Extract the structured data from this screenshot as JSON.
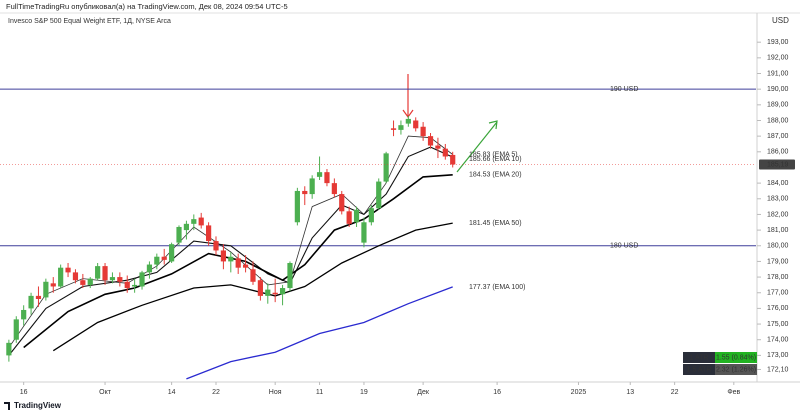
{
  "chart_data": {
    "type": "candlestick",
    "header": "FullTimeTradingRu опубликовал(а) на TradingView.com, Дек 08, 2024 09:54 UTC-5",
    "title": "Invesco S&P 500 Equal Weight ETF, 1Д, NYSE Arca",
    "currency": "USD",
    "footer": "TradingView",
    "up_color": "#4caf50",
    "down_color": "#e53935",
    "x": [
      0,
      1,
      2,
      3,
      4,
      5,
      6,
      7,
      8,
      9,
      10,
      11,
      12,
      13,
      14,
      15,
      16,
      17,
      18,
      19,
      20,
      21,
      22,
      23,
      24,
      25,
      26,
      27,
      28,
      29,
      30,
      31,
      32,
      33,
      34,
      35,
      36,
      37,
      38,
      39,
      40,
      41,
      42,
      43,
      44,
      45,
      46,
      47,
      48,
      49,
      50,
      51,
      52,
      53,
      54,
      55,
      56,
      57,
      58,
      59,
      60
    ],
    "open": [
      173.0,
      174.0,
      175.3,
      176.0,
      176.8,
      176.7,
      177.6,
      177.4,
      178.6,
      178.3,
      177.8,
      177.5,
      177.9,
      178.7,
      177.8,
      178.0,
      177.7,
      177.4,
      177.4,
      178.3,
      178.8,
      179.3,
      179.0,
      180.2,
      181.0,
      181.4,
      181.8,
      181.3,
      180.3,
      179.7,
      179.0,
      179.2,
      178.8,
      178.5,
      177.8,
      176.8,
      177.0,
      176.9,
      177.3,
      181.5,
      183.5,
      183.3,
      184.4,
      184.7,
      184.0,
      183.3,
      182.2,
      181.5,
      180.2,
      181.5,
      182.4,
      184.1,
      187.5,
      187.4,
      187.8,
      188.0,
      187.6,
      187.0,
      186.4,
      186.2,
      185.8
    ],
    "high": [
      174.0,
      175.5,
      176.2,
      177.0,
      177.4,
      177.9,
      178.0,
      178.8,
      178.9,
      178.5,
      178.2,
      178.0,
      178.9,
      178.9,
      178.3,
      178.3,
      178.1,
      177.9,
      178.4,
      179.0,
      179.5,
      179.8,
      180.2,
      181.3,
      181.6,
      182.0,
      182.1,
      181.5,
      180.6,
      180.1,
      179.6,
      179.5,
      179.4,
      179.0,
      178.0,
      177.6,
      177.9,
      177.5,
      179.0,
      183.7,
      183.8,
      184.5,
      185.7,
      184.9,
      184.3,
      183.5,
      182.5,
      182.5,
      181.8,
      182.6,
      184.3,
      186.0,
      188.0,
      188.0,
      188.3,
      188.2,
      187.9,
      187.2,
      186.9,
      186.5,
      186.0
    ],
    "low": [
      172.6,
      173.8,
      174.9,
      175.6,
      176.1,
      176.5,
      177.0,
      177.3,
      178.0,
      177.6,
      177.3,
      177.3,
      177.8,
      177.5,
      177.6,
      177.4,
      177.0,
      177.0,
      177.2,
      177.9,
      178.5,
      178.8,
      178.9,
      180.0,
      180.4,
      181.0,
      181.1,
      180.0,
      179.4,
      178.5,
      178.3,
      178.2,
      178.3,
      177.5,
      176.5,
      176.3,
      176.4,
      176.2,
      177.1,
      181.3,
      182.6,
      183.0,
      184.2,
      183.8,
      183.1,
      182.0,
      181.2,
      181.2,
      179.9,
      181.3,
      182.3,
      184.0,
      187.0,
      187.1,
      187.6,
      187.3,
      186.7,
      186.2,
      185.6,
      185.5,
      185.0
    ],
    "close": [
      173.8,
      175.3,
      175.9,
      176.8,
      176.6,
      177.7,
      177.4,
      178.6,
      178.3,
      177.8,
      177.5,
      177.9,
      178.7,
      177.8,
      178.0,
      177.7,
      177.3,
      177.5,
      178.3,
      178.8,
      179.3,
      179.1,
      180.1,
      181.2,
      181.4,
      181.7,
      181.3,
      180.3,
      179.7,
      179.0,
      179.3,
      178.6,
      178.6,
      177.7,
      176.8,
      177.2,
      176.9,
      177.3,
      178.9,
      183.5,
      183.3,
      184.3,
      184.7,
      184.0,
      183.3,
      182.2,
      181.4,
      182.3,
      181.5,
      182.4,
      184.1,
      185.9,
      187.4,
      187.7,
      188.1,
      187.5,
      187.0,
      186.4,
      186.2,
      185.7,
      185.19
    ],
    "xlim": [
      -1.2,
      101
    ],
    "ylim": [
      171.3,
      194.8
    ],
    "yticks": [
      {
        "value": 172.1,
        "label": "172,10"
      },
      {
        "value": 173,
        "label": "173,00"
      },
      {
        "value": 174,
        "label": "174,00"
      },
      {
        "value": 175,
        "label": "175,00"
      },
      {
        "value": 176,
        "label": "176,00"
      },
      {
        "value": 177,
        "label": "177,00"
      },
      {
        "value": 178,
        "label": "178,00"
      },
      {
        "value": 179,
        "label": "179,00"
      },
      {
        "value": 180,
        "label": "180,00"
      },
      {
        "value": 181,
        "label": "181,00"
      },
      {
        "value": 182,
        "label": "182,00"
      },
      {
        "value": 183,
        "label": "183,00"
      },
      {
        "value": 184,
        "label": "184,00"
      },
      {
        "value": 186,
        "label": "186,00"
      },
      {
        "value": 187,
        "label": "187,00"
      },
      {
        "value": 188,
        "label": "188,00"
      },
      {
        "value": 189,
        "label": "189,00"
      },
      {
        "value": 190,
        "label": "190,00"
      },
      {
        "value": 191,
        "label": "191,00"
      },
      {
        "value": 192,
        "label": "192,00"
      },
      {
        "value": 193,
        "label": "193,00"
      }
    ],
    "xticks": [
      {
        "value": 2,
        "label": "16"
      },
      {
        "value": 13,
        "label": "Окт"
      },
      {
        "value": 22,
        "label": "14"
      },
      {
        "value": 28,
        "label": "22"
      },
      {
        "value": 36,
        "label": "Ноя"
      },
      {
        "value": 42,
        "label": "11"
      },
      {
        "value": 48,
        "label": "19"
      },
      {
        "value": 56,
        "label": "Дек"
      },
      {
        "value": 66,
        "label": "16"
      },
      {
        "value": 77,
        "label": "2025"
      },
      {
        "value": 84,
        "label": "13"
      },
      {
        "value": 90,
        "label": "22"
      },
      {
        "value": 98,
        "label": "Фев"
      }
    ],
    "grid": false,
    "levels": [
      {
        "value": 190,
        "label": "190 USD",
        "color": "#3f3f9a"
      },
      {
        "value": 180,
        "label": "180 USD",
        "color": "#3f3f9a"
      }
    ],
    "last_price": {
      "value": 185.19,
      "label": "185,19"
    },
    "series": [
      {
        "name": "EMA 5",
        "label": "185.83 (EMA 5)",
        "color": "#333333",
        "width": 0.8,
        "x": [
          0,
          5,
          10,
          16,
          20,
          25,
          30,
          35,
          38,
          41,
          45,
          48,
          51,
          54,
          57,
          60
        ],
        "values": [
          173.5,
          176.9,
          177.9,
          177.6,
          178.7,
          181.2,
          179.6,
          177.5,
          177.7,
          182.5,
          183.3,
          182.0,
          184.0,
          187.0,
          186.9,
          185.83
        ]
      },
      {
        "name": "EMA 10",
        "label": "185.66 (EMA 10)",
        "color": "#111111",
        "width": 1.1,
        "x": [
          0,
          5,
          10,
          16,
          20,
          25,
          30,
          35,
          38,
          41,
          45,
          48,
          51,
          54,
          57,
          60
        ],
        "values": [
          173.0,
          176.0,
          177.4,
          177.8,
          178.3,
          180.3,
          180.0,
          178.2,
          177.6,
          180.5,
          182.6,
          182.0,
          183.3,
          185.7,
          186.3,
          185.66
        ]
      },
      {
        "name": "EMA 20",
        "label": "184.53 (EMA 20)",
        "color": "#000000",
        "width": 1.6,
        "x": [
          2,
          8,
          13,
          17,
          22,
          27,
          32,
          37,
          40,
          44,
          48,
          52,
          56,
          60
        ],
        "values": [
          173.5,
          175.8,
          176.9,
          177.3,
          178.2,
          179.5,
          179.0,
          177.8,
          178.8,
          181.0,
          181.7,
          183.0,
          184.4,
          184.53
        ]
      },
      {
        "name": "EMA 50",
        "label": "181.45 (EMA 50)",
        "color": "#000000",
        "width": 1.3,
        "x": [
          6,
          12,
          18,
          25,
          30,
          36,
          40,
          45,
          50,
          55,
          60
        ],
        "values": [
          173.3,
          175.1,
          176.2,
          177.3,
          177.5,
          176.8,
          177.4,
          178.9,
          180.0,
          181.0,
          181.45
        ]
      },
      {
        "name": "EMA 100",
        "label": "177.37 (EMA 100)",
        "color": "#2a2ad0",
        "width": 1.3,
        "x": [
          24,
          30,
          36,
          42,
          48,
          54,
          60
        ],
        "values": [
          171.5,
          172.6,
          173.2,
          174.4,
          175.1,
          176.3,
          177.37
        ]
      }
    ],
    "atr": [
      {
        "name": "1 ATR",
        "value_label": "1.55 (0.84%)",
        "color": "#22b322"
      },
      {
        "name": "1.5 ATR",
        "value_label": "2.32 (1.26%)",
        "color": "#555555"
      }
    ]
  }
}
